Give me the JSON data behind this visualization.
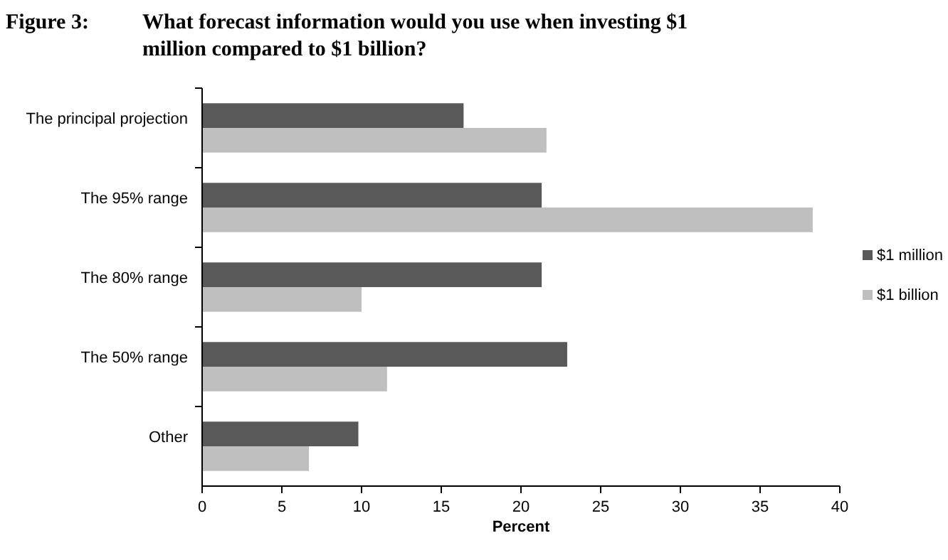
{
  "chart_data": {
    "type": "bar",
    "orientation": "horizontal",
    "title": "What forecast information would you use when investing $1 million compared to $1 billion?",
    "annotations": [
      "Figure 3:"
    ],
    "xlabel": "Percent",
    "categories": [
      "The principal projection",
      "The 95% range",
      "The 80% range",
      "The 50% range",
      "Other"
    ],
    "series": [
      {
        "name": "$1 million",
        "color": "#595959",
        "values": [
          16.4,
          21.3,
          21.3,
          22.9,
          9.8
        ]
      },
      {
        "name": "$1 billion",
        "color": "#bfbfbf",
        "values": [
          21.6,
          38.3,
          10.0,
          11.6,
          6.7
        ]
      }
    ],
    "xlim": [
      0,
      40
    ],
    "xticks": [
      0,
      5,
      10,
      15,
      20,
      25,
      30,
      35,
      40
    ],
    "grid": false,
    "legend": "right"
  }
}
